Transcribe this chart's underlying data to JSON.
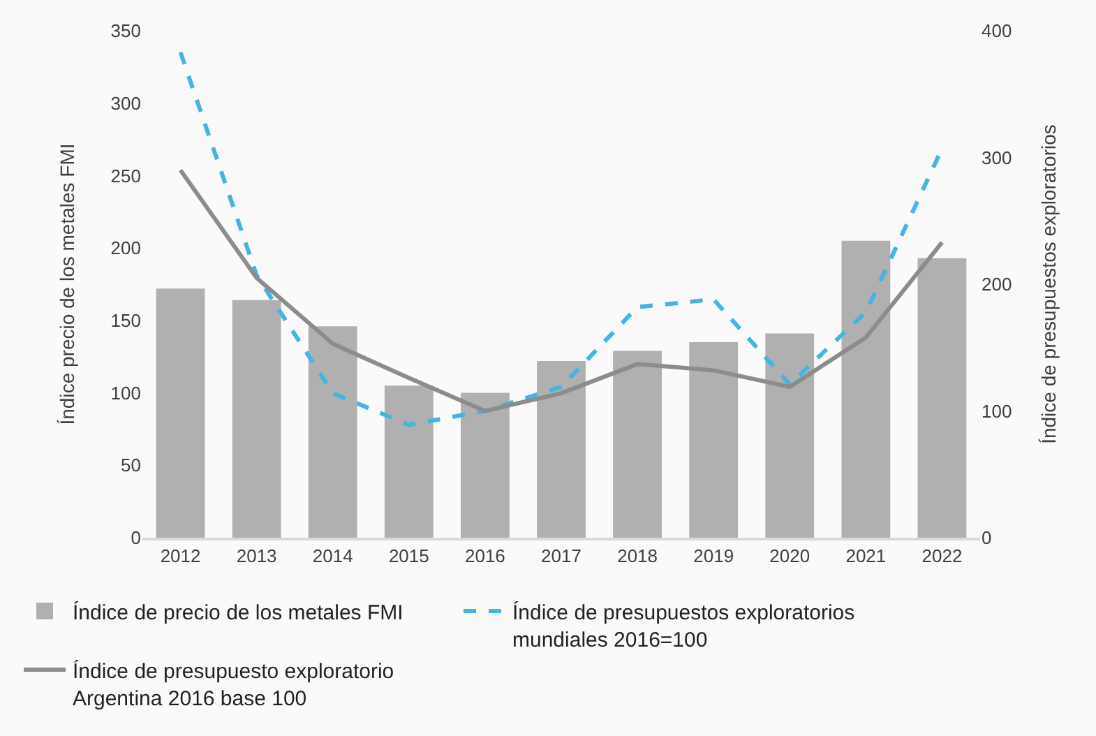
{
  "chart_data": {
    "type": "bar",
    "categories": [
      "2012",
      "2013",
      "2014",
      "2015",
      "2016",
      "2017",
      "2018",
      "2019",
      "2020",
      "2021",
      "2022"
    ],
    "ylabel": "Índice precio de los metales FMI",
    "y2label": "Índice de presupuestos exploratorios",
    "ylim": [
      0,
      350
    ],
    "yticks": [
      0,
      50,
      100,
      150,
      200,
      250,
      300,
      350
    ],
    "y2lim": [
      0,
      400
    ],
    "y2ticks": [
      0,
      100,
      200,
      300,
      400
    ],
    "legend": "bottom",
    "series": [
      {
        "name": "Índice de precio de los metales FMI",
        "color": "#b0b0b0",
        "values": [
          172,
          164,
          146,
          105,
          100,
          122,
          129,
          135,
          141,
          205,
          193
        ]
      },
      {
        "name": "Índice de presupuestos exploratorios mundiales 2016=100",
        "type": "line",
        "axis": "y2",
        "color": "#45b4e0",
        "line_style": "dashed",
        "values": [
          383,
          207,
          114,
          89,
          100,
          119,
          182,
          188,
          121,
          178,
          307
        ]
      },
      {
        "name": "Índice de presupuesto exploratorio Argentina 2016 base 100",
        "type": "line",
        "axis": "y2",
        "color": "#8c8c8c",
        "line_style": "solid",
        "values": [
          290,
          205,
          153,
          126,
          100,
          114,
          137,
          132,
          119,
          158,
          233
        ]
      }
    ]
  }
}
